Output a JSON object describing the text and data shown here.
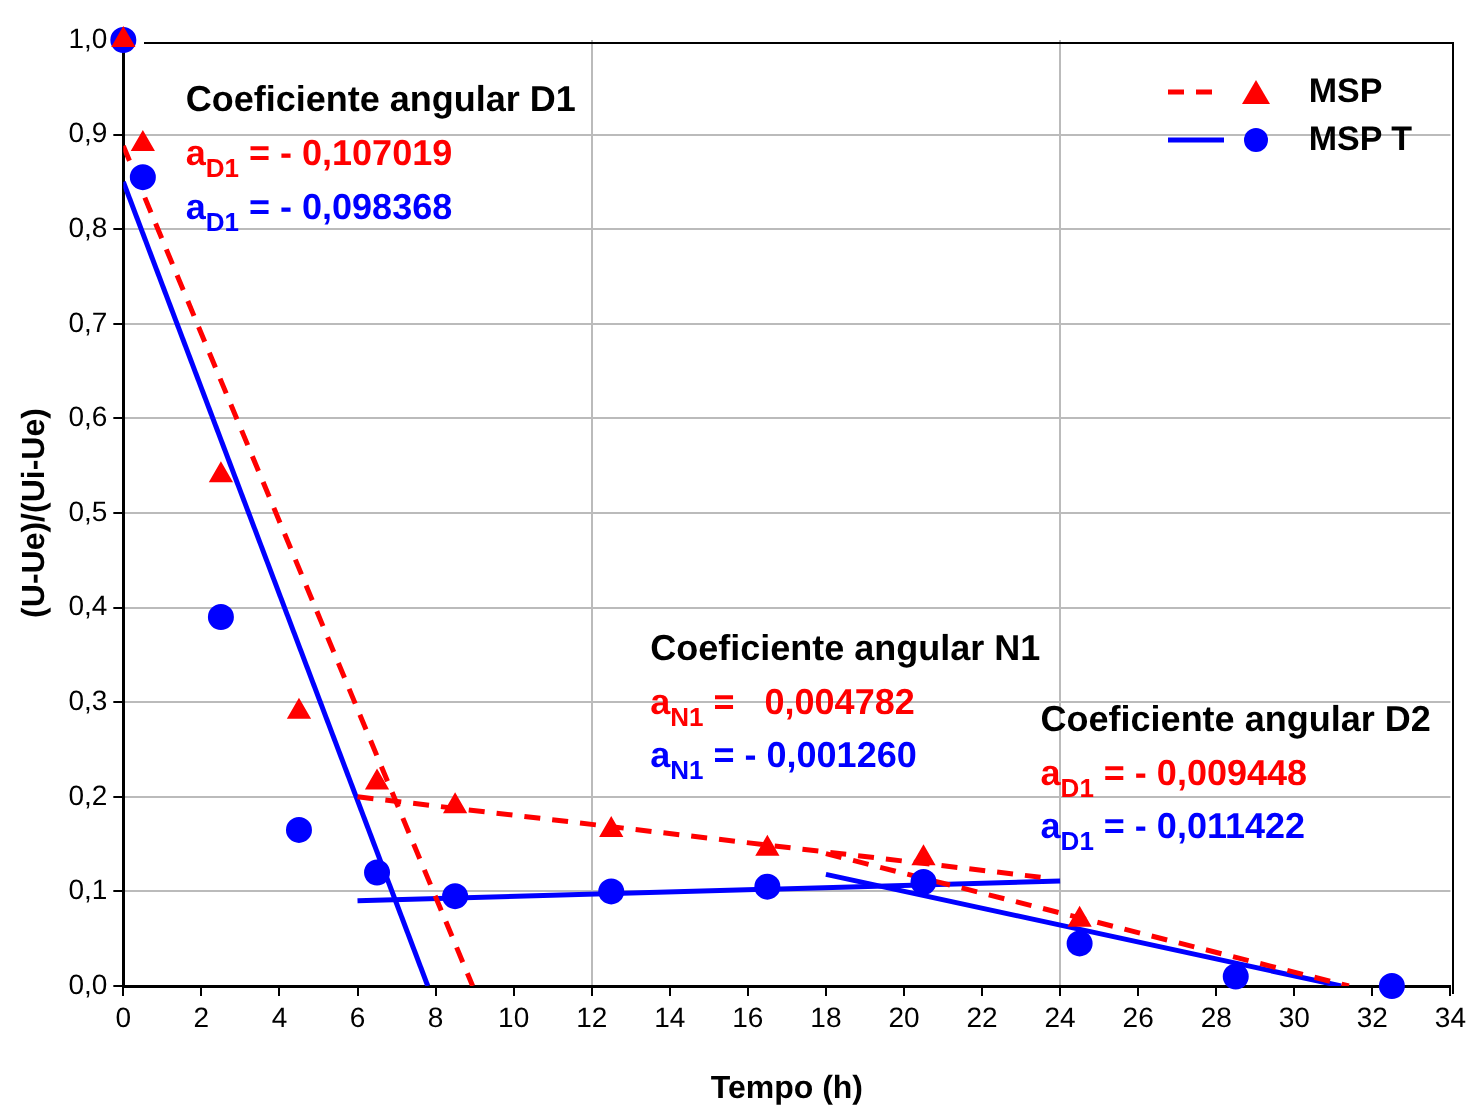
{
  "chart_data": {
    "type": "scatter",
    "xlabel": "Tempo (h)",
    "ylabel": "(U-Ue)/(Ui-Ue)",
    "xlim": [
      0,
      34
    ],
    "xticks": [
      0,
      2,
      4,
      6,
      8,
      10,
      12,
      14,
      16,
      18,
      20,
      22,
      24,
      26,
      28,
      30,
      32,
      34
    ],
    "ylim": [
      0,
      1
    ],
    "yticks": [
      {
        "value": 0,
        "label": "0,0"
      },
      {
        "value": 0.1,
        "label": "0,1"
      },
      {
        "value": 0.2,
        "label": "0,2"
      },
      {
        "value": 0.3,
        "label": "0,3"
      },
      {
        "value": 0.4,
        "label": "0,4"
      },
      {
        "value": 0.5,
        "label": "0,5"
      },
      {
        "value": 0.6,
        "label": "0,6"
      },
      {
        "value": 0.7,
        "label": "0,7"
      },
      {
        "value": 0.8,
        "label": "0,8"
      },
      {
        "value": 0.9,
        "label": "0,9"
      },
      {
        "value": 1,
        "label": "1,0"
      }
    ],
    "grid": true,
    "legend": "top right",
    "series": [
      {
        "name": "MSP",
        "marker": "triangle",
        "color": "#ff0000",
        "x": [
          0,
          0.5,
          2.5,
          4.5,
          6.5,
          8.5,
          12.5,
          16.5,
          20.5,
          24.5
        ],
        "values": [
          1.0,
          0.89,
          0.54,
          0.29,
          0.215,
          0.19,
          0.165,
          0.145,
          0.135,
          0.07
        ]
      },
      {
        "name": "MSP T",
        "marker": "circle",
        "color": "#0000ff",
        "x": [
          0,
          0.5,
          2.5,
          4.5,
          6.5,
          8.5,
          12.5,
          16.5,
          20.5,
          24.5,
          28.5,
          32.5
        ],
        "values": [
          1.0,
          0.855,
          0.39,
          0.165,
          0.12,
          0.095,
          0.1,
          0.105,
          0.11,
          0.045,
          0.01,
          0.0
        ]
      },
      {
        "type": "line",
        "color": "#ff0000",
        "line_style": "dashed",
        "x": [
          0,
          8.95
        ],
        "values": [
          0.888,
          0
        ]
      },
      {
        "type": "line",
        "color": "#ff0000",
        "line_style": "dashed",
        "x": [
          6,
          23.5
        ],
        "values": [
          0.2,
          0.115
        ]
      },
      {
        "type": "line",
        "color": "#ff0000",
        "line_style": "dashed",
        "x": [
          18,
          31.4
        ],
        "values": [
          0.14,
          0
        ]
      },
      {
        "type": "line",
        "color": "#0000ff",
        "line_style": "solid",
        "x": [
          0,
          7.8
        ],
        "values": [
          0.85,
          0
        ]
      },
      {
        "type": "line",
        "color": "#0000ff",
        "line_style": "solid",
        "x": [
          6,
          24
        ],
        "values": [
          0.09,
          0.111
        ]
      },
      {
        "type": "line",
        "color": "#0000ff",
        "line_style": "solid",
        "x": [
          18,
          31.2
        ],
        "values": [
          0.118,
          0
        ]
      }
    ],
    "annotations": [
      "Coeficiente angular D1",
      "a$_{D1}$ = - 0,107019",
      "a$_{D1}$ = - 0,098368",
      "Coeficiente angular N1",
      "a$_{N1}$ =   0,004782",
      "a$_{N1}$ = - 0,001260",
      "Coeficiente angular D2",
      "a$_{D1}$ = - 0,009448",
      "a$_{D1}$ = - 0,011422"
    ]
  }
}
